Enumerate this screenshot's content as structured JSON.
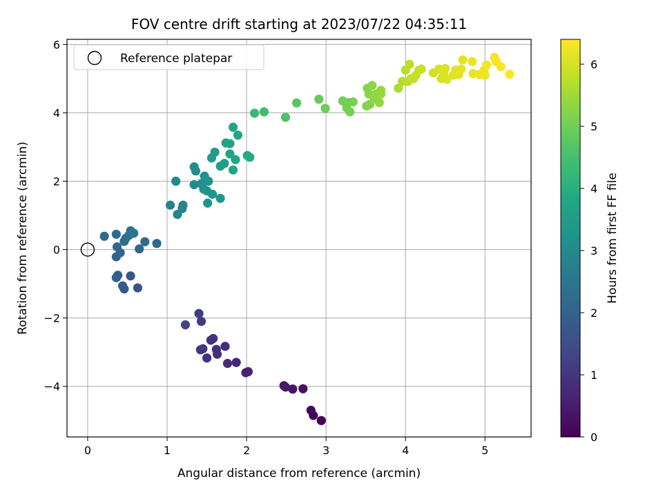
{
  "chart_data": {
    "type": "scatter",
    "title": "FOV centre drift starting at 2023/07/22 04:35:11",
    "xlabel": "Angular distance from reference (arcmin)",
    "ylabel": "Rotation from reference (arcmin)",
    "xlim": [
      -0.26,
      5.58
    ],
    "ylim": [
      -5.48,
      6.15
    ],
    "xticks": [
      0,
      1,
      2,
      3,
      4,
      5
    ],
    "yticks": [
      -4,
      -2,
      0,
      2,
      4,
      6
    ],
    "grid": true,
    "legend": {
      "position": "top-left",
      "entries": [
        "Reference platepar"
      ]
    },
    "reference_point": {
      "x": 0,
      "y": 0
    },
    "colorbar": {
      "label": "Hours from first FF file",
      "range": [
        0,
        6.4
      ],
      "ticks": [
        0,
        1,
        2,
        3,
        4,
        5,
        6
      ],
      "colormap": "viridis"
    },
    "points": [
      {
        "x": 2.94,
        "y": -5.0,
        "c": 0.05
      },
      {
        "x": 2.84,
        "y": -4.85,
        "c": 0.1
      },
      {
        "x": 2.81,
        "y": -4.7,
        "c": 0.15
      },
      {
        "x": 2.71,
        "y": -4.07,
        "c": 0.3
      },
      {
        "x": 2.58,
        "y": -4.08,
        "c": 0.35
      },
      {
        "x": 2.49,
        "y": -4.02,
        "c": 0.4
      },
      {
        "x": 2.47,
        "y": -3.98,
        "c": 0.42
      },
      {
        "x": 2.02,
        "y": -3.57,
        "c": 0.6
      },
      {
        "x": 1.99,
        "y": -3.6,
        "c": 0.62
      },
      {
        "x": 1.87,
        "y": -3.3,
        "c": 0.7
      },
      {
        "x": 1.76,
        "y": -3.33,
        "c": 0.75
      },
      {
        "x": 1.73,
        "y": -2.83,
        "c": 0.8
      },
      {
        "x": 1.63,
        "y": -3.06,
        "c": 0.85
      },
      {
        "x": 1.62,
        "y": -2.92,
        "c": 0.88
      },
      {
        "x": 1.58,
        "y": -2.6,
        "c": 0.9
      },
      {
        "x": 1.55,
        "y": -2.65,
        "c": 0.92
      },
      {
        "x": 1.5,
        "y": -3.17,
        "c": 0.95
      },
      {
        "x": 1.45,
        "y": -2.9,
        "c": 1.0
      },
      {
        "x": 1.42,
        "y": -2.93,
        "c": 1.02
      },
      {
        "x": 1.43,
        "y": -2.1,
        "c": 1.1
      },
      {
        "x": 1.4,
        "y": -1.87,
        "c": 1.15
      },
      {
        "x": 1.23,
        "y": -2.2,
        "c": 1.3
      },
      {
        "x": 0.63,
        "y": -1.12,
        "c": 1.6
      },
      {
        "x": 0.54,
        "y": -0.77,
        "c": 1.7
      },
      {
        "x": 0.46,
        "y": -1.15,
        "c": 1.75
      },
      {
        "x": 0.44,
        "y": -1.06,
        "c": 1.8
      },
      {
        "x": 0.38,
        "y": -0.75,
        "c": 1.85
      },
      {
        "x": 0.36,
        "y": -0.82,
        "c": 1.9
      },
      {
        "x": 0.36,
        "y": -0.21,
        "c": 2.0
      },
      {
        "x": 0.41,
        "y": -0.09,
        "c": 2.05
      },
      {
        "x": 0.37,
        "y": 0.08,
        "c": 2.1
      },
      {
        "x": 0.65,
        "y": 0.02,
        "c": 2.1
      },
      {
        "x": 0.72,
        "y": 0.23,
        "c": 2.15
      },
      {
        "x": 0.87,
        "y": 0.18,
        "c": 2.15
      },
      {
        "x": 0.21,
        "y": 0.39,
        "c": 2.2
      },
      {
        "x": 0.36,
        "y": 0.45,
        "c": 2.2
      },
      {
        "x": 0.46,
        "y": 0.24,
        "c": 2.25
      },
      {
        "x": 0.48,
        "y": 0.33,
        "c": 2.3
      },
      {
        "x": 0.52,
        "y": 0.42,
        "c": 2.35
      },
      {
        "x": 0.54,
        "y": 0.55,
        "c": 2.4
      },
      {
        "x": 0.58,
        "y": 0.48,
        "c": 2.45
      },
      {
        "x": 1.04,
        "y": 1.3,
        "c": 2.8
      },
      {
        "x": 1.13,
        "y": 1.03,
        "c": 2.85
      },
      {
        "x": 1.19,
        "y": 1.2,
        "c": 2.9
      },
      {
        "x": 1.2,
        "y": 1.3,
        "c": 2.9
      },
      {
        "x": 1.11,
        "y": 2.0,
        "c": 3.0
      },
      {
        "x": 1.34,
        "y": 1.9,
        "c": 3.0
      },
      {
        "x": 1.34,
        "y": 2.42,
        "c": 3.05
      },
      {
        "x": 1.36,
        "y": 2.3,
        "c": 3.1
      },
      {
        "x": 1.43,
        "y": 1.93,
        "c": 3.15
      },
      {
        "x": 1.46,
        "y": 1.77,
        "c": 3.2
      },
      {
        "x": 1.47,
        "y": 2.15,
        "c": 3.2
      },
      {
        "x": 1.5,
        "y": 1.72,
        "c": 3.25
      },
      {
        "x": 1.51,
        "y": 1.36,
        "c": 3.3
      },
      {
        "x": 1.52,
        "y": 2.0,
        "c": 3.3
      },
      {
        "x": 1.57,
        "y": 1.62,
        "c": 3.35
      },
      {
        "x": 1.67,
        "y": 1.5,
        "c": 3.4
      },
      {
        "x": 1.56,
        "y": 2.68,
        "c": 3.5
      },
      {
        "x": 1.6,
        "y": 2.85,
        "c": 3.5
      },
      {
        "x": 1.67,
        "y": 2.44,
        "c": 3.55
      },
      {
        "x": 1.72,
        "y": 2.52,
        "c": 3.6
      },
      {
        "x": 1.74,
        "y": 3.12,
        "c": 3.65
      },
      {
        "x": 1.79,
        "y": 3.1,
        "c": 3.7
      },
      {
        "x": 1.79,
        "y": 2.8,
        "c": 3.7
      },
      {
        "x": 1.83,
        "y": 3.58,
        "c": 3.75
      },
      {
        "x": 1.83,
        "y": 2.33,
        "c": 3.75
      },
      {
        "x": 1.86,
        "y": 2.63,
        "c": 3.8
      },
      {
        "x": 1.89,
        "y": 3.35,
        "c": 3.8
      },
      {
        "x": 2.01,
        "y": 2.75,
        "c": 3.85
      },
      {
        "x": 2.04,
        "y": 2.7,
        "c": 3.9
      },
      {
        "x": 2.1,
        "y": 3.99,
        "c": 4.3
      },
      {
        "x": 2.22,
        "y": 4.03,
        "c": 4.4
      },
      {
        "x": 2.49,
        "y": 3.87,
        "c": 4.6
      },
      {
        "x": 2.63,
        "y": 4.29,
        "c": 4.7
      },
      {
        "x": 2.91,
        "y": 4.4,
        "c": 4.9
      },
      {
        "x": 2.99,
        "y": 4.13,
        "c": 4.95
      },
      {
        "x": 3.21,
        "y": 4.35,
        "c": 5.0
      },
      {
        "x": 3.26,
        "y": 4.15,
        "c": 5.05
      },
      {
        "x": 3.28,
        "y": 4.3,
        "c": 5.05
      },
      {
        "x": 3.3,
        "y": 4.03,
        "c": 5.1
      },
      {
        "x": 3.34,
        "y": 4.32,
        "c": 5.1
      },
      {
        "x": 3.51,
        "y": 4.2,
        "c": 5.2
      },
      {
        "x": 3.52,
        "y": 4.72,
        "c": 5.2
      },
      {
        "x": 3.54,
        "y": 4.55,
        "c": 5.25
      },
      {
        "x": 3.55,
        "y": 4.25,
        "c": 5.25
      },
      {
        "x": 3.58,
        "y": 4.8,
        "c": 5.3
      },
      {
        "x": 3.61,
        "y": 4.42,
        "c": 5.3
      },
      {
        "x": 3.63,
        "y": 4.55,
        "c": 5.35
      },
      {
        "x": 3.67,
        "y": 4.3,
        "c": 5.35
      },
      {
        "x": 3.69,
        "y": 4.55,
        "c": 5.4
      },
      {
        "x": 3.69,
        "y": 4.66,
        "c": 5.4
      },
      {
        "x": 3.91,
        "y": 4.72,
        "c": 5.6
      },
      {
        "x": 3.96,
        "y": 4.92,
        "c": 5.65
      },
      {
        "x": 4.0,
        "y": 5.25,
        "c": 5.7
      },
      {
        "x": 4.03,
        "y": 4.92,
        "c": 5.75
      },
      {
        "x": 4.05,
        "y": 5.42,
        "c": 5.75
      },
      {
        "x": 4.07,
        "y": 5.0,
        "c": 5.8
      },
      {
        "x": 4.1,
        "y": 5.0,
        "c": 5.8
      },
      {
        "x": 4.13,
        "y": 5.1,
        "c": 5.85
      },
      {
        "x": 4.17,
        "y": 5.25,
        "c": 5.85
      },
      {
        "x": 4.2,
        "y": 5.28,
        "c": 5.9
      },
      {
        "x": 4.35,
        "y": 5.17,
        "c": 5.95
      },
      {
        "x": 4.42,
        "y": 5.28,
        "c": 6.0
      },
      {
        "x": 4.45,
        "y": 5.0,
        "c": 6.0
      },
      {
        "x": 4.48,
        "y": 5.15,
        "c": 6.05
      },
      {
        "x": 4.5,
        "y": 5.3,
        "c": 6.05
      },
      {
        "x": 4.52,
        "y": 4.98,
        "c": 6.05
      },
      {
        "x": 4.6,
        "y": 5.1,
        "c": 6.1
      },
      {
        "x": 4.63,
        "y": 5.25,
        "c": 6.1
      },
      {
        "x": 4.67,
        "y": 5.12,
        "c": 6.15
      },
      {
        "x": 4.7,
        "y": 5.28,
        "c": 6.15
      },
      {
        "x": 4.72,
        "y": 5.55,
        "c": 6.15
      },
      {
        "x": 4.84,
        "y": 5.5,
        "c": 6.2
      },
      {
        "x": 4.85,
        "y": 5.15,
        "c": 6.2
      },
      {
        "x": 4.93,
        "y": 5.12,
        "c": 6.25
      },
      {
        "x": 4.99,
        "y": 5.25,
        "c": 6.25
      },
      {
        "x": 5.0,
        "y": 5.1,
        "c": 6.25
      },
      {
        "x": 5.02,
        "y": 5.4,
        "c": 6.3
      },
      {
        "x": 5.12,
        "y": 5.62,
        "c": 6.3
      },
      {
        "x": 5.14,
        "y": 5.5,
        "c": 6.32
      },
      {
        "x": 5.2,
        "y": 5.35,
        "c": 6.35
      },
      {
        "x": 5.31,
        "y": 5.13,
        "c": 6.38
      }
    ]
  }
}
